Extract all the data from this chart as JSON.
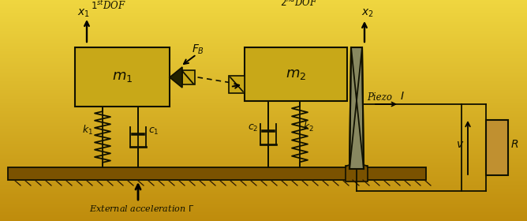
{
  "figsize": [
    6.68,
    2.8
  ],
  "dpi": 100,
  "box_fill": "#c8a818",
  "ground_fill": "#7a5200",
  "resistor_fill": "#c09030",
  "line_color": "#111100",
  "piezo_fill": "#5a5030",
  "piezo_line": "#222200"
}
